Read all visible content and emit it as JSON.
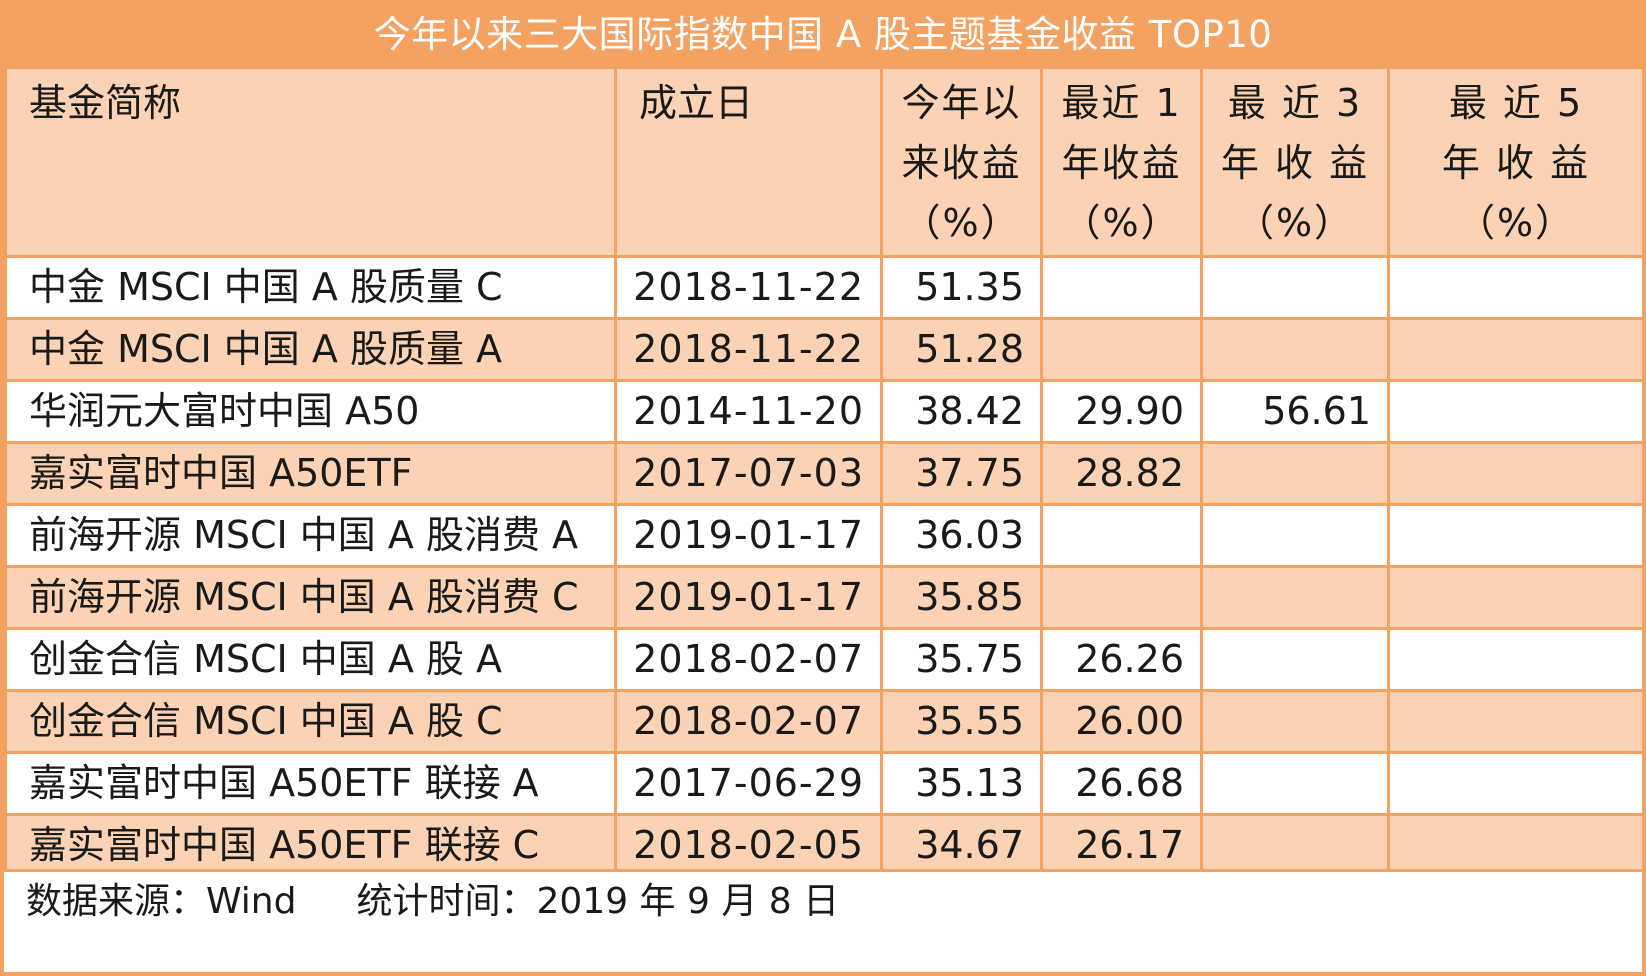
{
  "title": "今年以来三大国际指数中国 A 股主题基金收益 TOP10",
  "headers": {
    "name": "基金简称",
    "date": "成立日",
    "ytd": [
      "今年以",
      "来收益",
      "（%）"
    ],
    "y1": [
      "最近 1",
      "年收益",
      "（%）"
    ],
    "y3": [
      "最 近 3",
      "年 收 益",
      "（%）"
    ],
    "y5": [
      "最 近 5",
      "年 收 益",
      "（%）"
    ]
  },
  "rows": [
    {
      "name": "中金 MSCI 中国 A 股质量 C",
      "date": "2018-11-22",
      "ytd": "51.35",
      "y1": "",
      "y3": "",
      "y5": ""
    },
    {
      "name": "中金 MSCI 中国 A 股质量 A",
      "date": "2018-11-22",
      "ytd": "51.28",
      "y1": "",
      "y3": "",
      "y5": ""
    },
    {
      "name": "华润元大富时中国 A50",
      "date": "2014-11-20",
      "ytd": "38.42",
      "y1": "29.90",
      "y3": "56.61",
      "y5": ""
    },
    {
      "name": "嘉实富时中国 A50ETF",
      "date": "2017-07-03",
      "ytd": "37.75",
      "y1": "28.82",
      "y3": "",
      "y5": ""
    },
    {
      "name": "前海开源 MSCI 中国 A 股消费 A",
      "date": "2019-01-17",
      "ytd": "36.03",
      "y1": "",
      "y3": "",
      "y5": ""
    },
    {
      "name": "前海开源 MSCI 中国 A 股消费 C",
      "date": "2019-01-17",
      "ytd": "35.85",
      "y1": "",
      "y3": "",
      "y5": ""
    },
    {
      "name": "创金合信 MSCI 中国 A 股 A",
      "date": "2018-02-07",
      "ytd": "35.75",
      "y1": "26.26",
      "y3": "",
      "y5": ""
    },
    {
      "name": "创金合信 MSCI 中国 A 股 C",
      "date": "2018-02-07",
      "ytd": "35.55",
      "y1": "26.00",
      "y3": "",
      "y5": ""
    },
    {
      "name": "嘉实富时中国 A50ETF 联接 A",
      "date": "2017-06-29",
      "ytd": "35.13",
      "y1": "26.68",
      "y3": "",
      "y5": ""
    },
    {
      "name": "嘉实富时中国 A50ETF 联接 C",
      "date": "2018-02-05",
      "ytd": "34.67",
      "y1": "26.17",
      "y3": "",
      "y5": ""
    }
  ],
  "footer": {
    "source": "数据来源：Wind",
    "stat_time": "统计时间：2019 年 9 月 8 日"
  },
  "colors": {
    "accent": "#f4a262",
    "band": "#fbd3b4"
  }
}
